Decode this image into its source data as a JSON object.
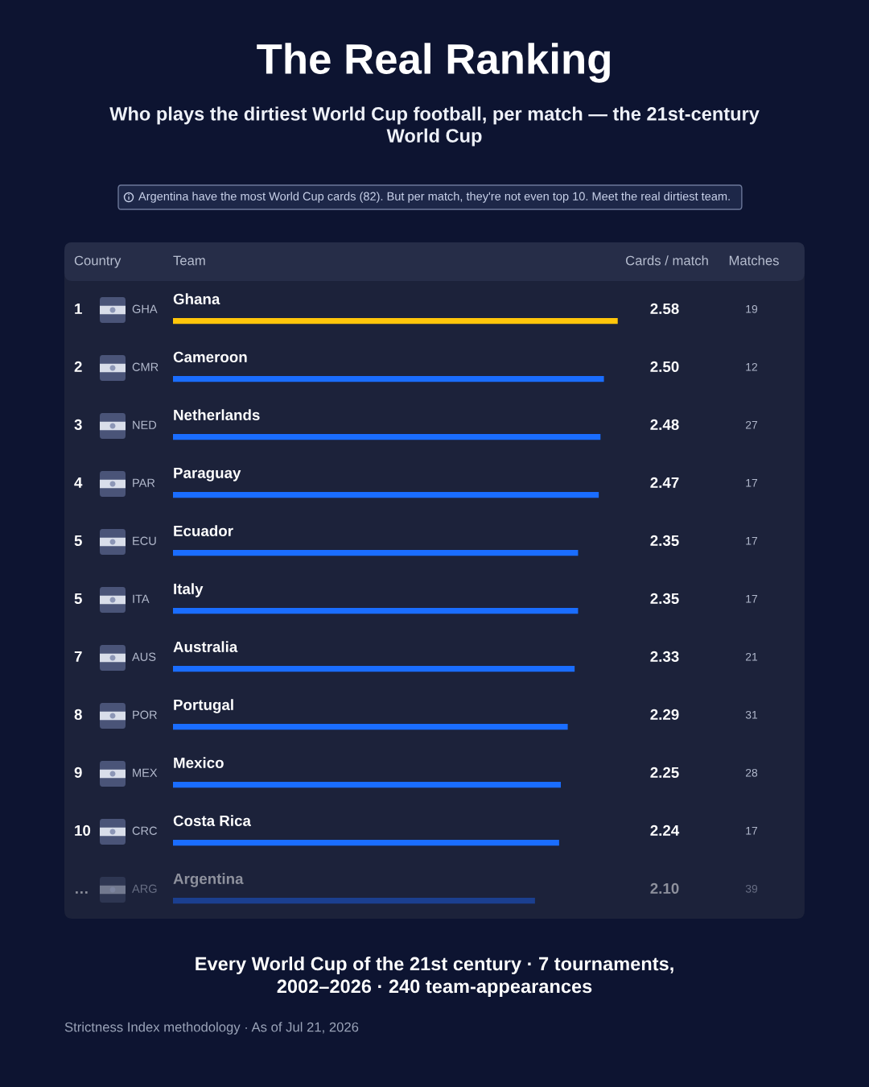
{
  "chart_data": {
    "type": "bar",
    "orientation": "horizontal",
    "title": "The Real Ranking",
    "subtitle": "Who plays the dirtiest World Cup football, per match — the 21st-century World Cup",
    "xlabel": "Cards / match",
    "ylabel": "Team",
    "categories": [
      "Ghana",
      "Cameroon",
      "Netherlands",
      "Paraguay",
      "Ecuador",
      "Italy",
      "Australia",
      "Portugal",
      "Mexico",
      "Costa Rica",
      "Argentina"
    ],
    "values": [
      2.58,
      2.5,
      2.48,
      2.47,
      2.35,
      2.35,
      2.33,
      2.29,
      2.25,
      2.24,
      2.1
    ],
    "value_labels": [
      "2.58",
      "2.50",
      "2.48",
      "2.47",
      "2.35",
      "2.35",
      "2.33",
      "2.29",
      "2.25",
      "2.24",
      "2.10"
    ],
    "colors": [
      "#ffc60a",
      "#1a6dff",
      "#1a6dff",
      "#1a6dff",
      "#1a6dff",
      "#1a6dff",
      "#1a6dff",
      "#1a6dff",
      "#1a6dff",
      "#1a6dff",
      "#1b3f8f"
    ],
    "xlim": [
      0,
      2.6
    ],
    "tick_labels": "y",
    "annotations": [
      "Country",
      "Matches",
      "Argentina have the most World Cup cards (82). But per match, they're not even top 10. Meet the real dirtiest team.",
      "Every World Cup of the 21st century · 7 tournaments, 2002–2026 · 240 team-appearances",
      "Strictness Index methodology · As of Jul 21, 2026",
      "1",
      "GHA",
      "19",
      "2",
      "CMR",
      "12",
      "3",
      "NED",
      "27",
      "4",
      "PAR",
      "17",
      "5",
      "ECU",
      "17",
      "5",
      "ITA",
      "17",
      "7",
      "AUS",
      "21",
      "8",
      "POR",
      "31",
      "9",
      "MEX",
      "28",
      "10",
      "CRC",
      "17",
      "…",
      "ARG",
      "39"
    ]
  }
}
